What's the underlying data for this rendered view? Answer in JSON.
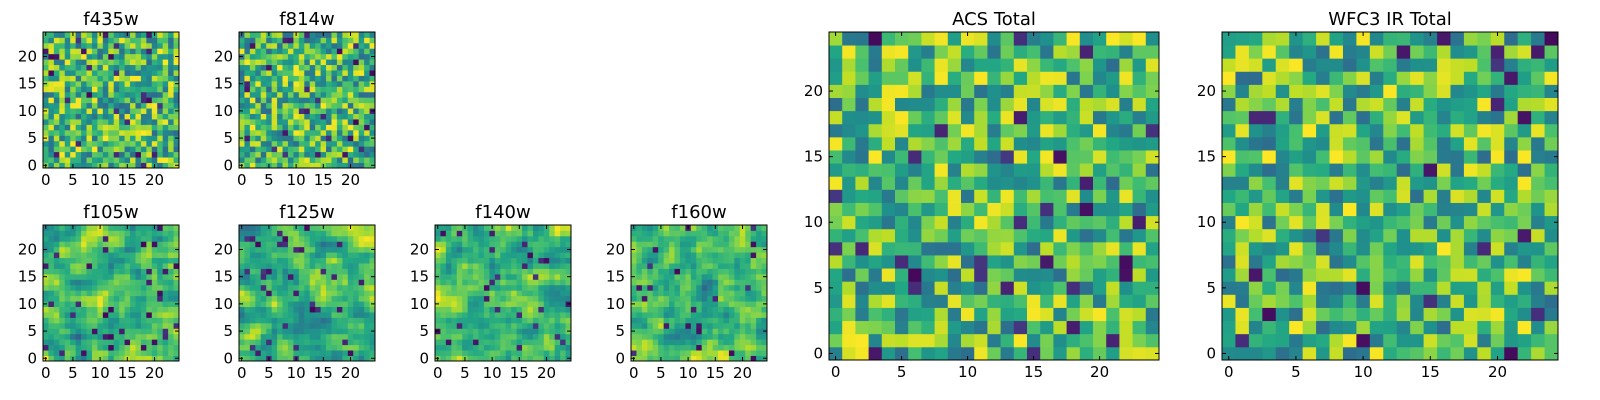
{
  "chart_data": [
    {
      "type": "heatmap",
      "title": "f435w",
      "xticks": [
        "0",
        "5",
        "10",
        "15",
        "20"
      ],
      "yticks": [
        "0",
        "5",
        "10",
        "15",
        "20"
      ],
      "xlim": [
        0,
        25
      ],
      "ylim": [
        0,
        25
      ],
      "grid": false,
      "colormap": "viridis"
    },
    {
      "type": "heatmap",
      "title": "f814w",
      "xticks": [
        "0",
        "5",
        "10",
        "15",
        "20"
      ],
      "yticks": [
        "0",
        "5",
        "10",
        "15",
        "20"
      ],
      "xlim": [
        0,
        25
      ],
      "ylim": [
        0,
        25
      ],
      "grid": false,
      "colormap": "viridis"
    },
    {
      "type": "heatmap",
      "title": "f105w",
      "xticks": [
        "0",
        "5",
        "10",
        "15",
        "20"
      ],
      "yticks": [
        "0",
        "5",
        "10",
        "15",
        "20"
      ],
      "xlim": [
        0,
        25
      ],
      "ylim": [
        0,
        25
      ],
      "grid": false,
      "colormap": "viridis"
    },
    {
      "type": "heatmap",
      "title": "f125w",
      "xticks": [
        "0",
        "5",
        "10",
        "15",
        "20"
      ],
      "yticks": [
        "0",
        "5",
        "10",
        "15",
        "20"
      ],
      "xlim": [
        0,
        25
      ],
      "ylim": [
        0,
        25
      ],
      "grid": false,
      "colormap": "viridis"
    },
    {
      "type": "heatmap",
      "title": "f140w",
      "xticks": [
        "0",
        "5",
        "10",
        "15",
        "20"
      ],
      "yticks": [
        "0",
        "5",
        "10",
        "15",
        "20"
      ],
      "xlim": [
        0,
        25
      ],
      "ylim": [
        0,
        25
      ],
      "grid": false,
      "colormap": "viridis"
    },
    {
      "type": "heatmap",
      "title": "f160w",
      "xticks": [
        "0",
        "5",
        "10",
        "15",
        "20"
      ],
      "yticks": [
        "0",
        "5",
        "10",
        "15",
        "20"
      ],
      "xlim": [
        0,
        25
      ],
      "ylim": [
        0,
        25
      ],
      "grid": false,
      "colormap": "viridis"
    },
    {
      "type": "heatmap",
      "title": "ACS Total",
      "xticks": [
        "0",
        "5",
        "10",
        "15",
        "20"
      ],
      "yticks": [
        "0",
        "5",
        "10",
        "15",
        "20"
      ],
      "xlim": [
        0,
        25
      ],
      "ylim": [
        0,
        25
      ],
      "grid": false,
      "colormap": "viridis"
    },
    {
      "type": "heatmap",
      "title": "WFC3 IR Total",
      "xticks": [
        "0",
        "5",
        "10",
        "15",
        "20"
      ],
      "yticks": [
        "0",
        "5",
        "10",
        "15",
        "20"
      ],
      "xlim": [
        0,
        25
      ],
      "ylim": [
        0,
        25
      ],
      "grid": false,
      "colormap": "viridis"
    }
  ]
}
